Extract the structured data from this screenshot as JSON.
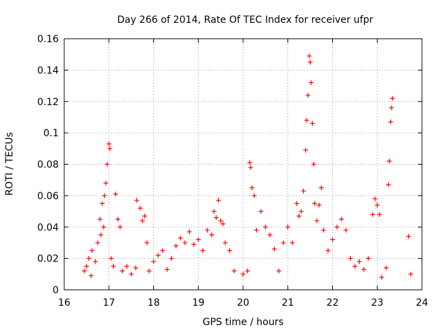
{
  "chart_data": {
    "type": "scatter",
    "title": "Day 266 of 2014, Rate Of TEC Index for receiver ufpr",
    "xlabel": "GPS time / hours",
    "ylabel": "ROTI / TECUs",
    "xlim": [
      16,
      24
    ],
    "ylim": [
      0,
      0.16
    ],
    "grid": true,
    "marker": "+",
    "color": "#ff0000",
    "x_ticks": [
      "16",
      "17",
      "18",
      "19",
      "20",
      "21",
      "22",
      "23",
      "24"
    ],
    "y_ticks": [
      "0",
      "0.02",
      "0.04",
      "0.06",
      "0.08",
      "0.1",
      "0.12",
      "0.14",
      "0.16"
    ],
    "points": [
      [
        16.45,
        0.012
      ],
      [
        16.5,
        0.015
      ],
      [
        16.55,
        0.02
      ],
      [
        16.6,
        0.009
      ],
      [
        16.62,
        0.025
      ],
      [
        16.7,
        0.018
      ],
      [
        16.75,
        0.03
      ],
      [
        16.8,
        0.045
      ],
      [
        16.85,
        0.055
      ],
      [
        16.9,
        0.06
      ],
      [
        16.93,
        0.068
      ],
      [
        16.96,
        0.08
      ],
      [
        17.0,
        0.093
      ],
      [
        17.02,
        0.09
      ],
      [
        16.88,
        0.04
      ],
      [
        16.82,
        0.035
      ],
      [
        17.05,
        0.02
      ],
      [
        17.1,
        0.015
      ],
      [
        17.15,
        0.061
      ],
      [
        17.2,
        0.045
      ],
      [
        17.25,
        0.04
      ],
      [
        17.3,
        0.012
      ],
      [
        17.4,
        0.015
      ],
      [
        17.5,
        0.01
      ],
      [
        17.6,
        0.014
      ],
      [
        17.62,
        0.057
      ],
      [
        17.7,
        0.052
      ],
      [
        17.75,
        0.044
      ],
      [
        17.8,
        0.047
      ],
      [
        17.85,
        0.03
      ],
      [
        17.9,
        0.012
      ],
      [
        18.0,
        0.018
      ],
      [
        18.1,
        0.022
      ],
      [
        18.2,
        0.025
      ],
      [
        18.3,
        0.013
      ],
      [
        18.4,
        0.02
      ],
      [
        18.5,
        0.028
      ],
      [
        18.6,
        0.033
      ],
      [
        18.7,
        0.03
      ],
      [
        18.8,
        0.037
      ],
      [
        18.9,
        0.029
      ],
      [
        19.0,
        0.032
      ],
      [
        19.1,
        0.025
      ],
      [
        19.2,
        0.038
      ],
      [
        19.3,
        0.035
      ],
      [
        19.35,
        0.05
      ],
      [
        19.4,
        0.046
      ],
      [
        19.45,
        0.057
      ],
      [
        19.5,
        0.044
      ],
      [
        19.55,
        0.042
      ],
      [
        19.6,
        0.03
      ],
      [
        19.7,
        0.025
      ],
      [
        19.8,
        0.012
      ],
      [
        20.0,
        0.01
      ],
      [
        20.1,
        0.012
      ],
      [
        20.15,
        0.081
      ],
      [
        20.17,
        0.078
      ],
      [
        20.2,
        0.065
      ],
      [
        20.25,
        0.06
      ],
      [
        20.3,
        0.038
      ],
      [
        20.4,
        0.05
      ],
      [
        20.5,
        0.04
      ],
      [
        20.6,
        0.035
      ],
      [
        20.7,
        0.026
      ],
      [
        20.8,
        0.012
      ],
      [
        20.9,
        0.03
      ],
      [
        21.0,
        0.04
      ],
      [
        21.1,
        0.03
      ],
      [
        21.2,
        0.055
      ],
      [
        21.25,
        0.047
      ],
      [
        21.3,
        0.05
      ],
      [
        21.35,
        0.063
      ],
      [
        21.4,
        0.089
      ],
      [
        21.42,
        0.108
      ],
      [
        21.45,
        0.124
      ],
      [
        21.48,
        0.149
      ],
      [
        21.5,
        0.145
      ],
      [
        21.52,
        0.132
      ],
      [
        21.55,
        0.106
      ],
      [
        21.58,
        0.08
      ],
      [
        21.6,
        0.055
      ],
      [
        21.65,
        0.044
      ],
      [
        21.7,
        0.054
      ],
      [
        21.75,
        0.065
      ],
      [
        21.8,
        0.038
      ],
      [
        21.9,
        0.025
      ],
      [
        22.0,
        0.032
      ],
      [
        22.1,
        0.04
      ],
      [
        22.2,
        0.045
      ],
      [
        22.3,
        0.038
      ],
      [
        22.4,
        0.02
      ],
      [
        22.5,
        0.015
      ],
      [
        22.6,
        0.018
      ],
      [
        22.7,
        0.013
      ],
      [
        22.8,
        0.02
      ],
      [
        22.9,
        0.048
      ],
      [
        22.95,
        0.058
      ],
      [
        23.0,
        0.054
      ],
      [
        23.05,
        0.048
      ],
      [
        23.1,
        0.008
      ],
      [
        23.2,
        0.014
      ],
      [
        23.25,
        0.067
      ],
      [
        23.27,
        0.082
      ],
      [
        23.3,
        0.107
      ],
      [
        23.32,
        0.116
      ],
      [
        23.34,
        0.122
      ],
      [
        23.7,
        0.034
      ],
      [
        23.75,
        0.01
      ]
    ]
  }
}
